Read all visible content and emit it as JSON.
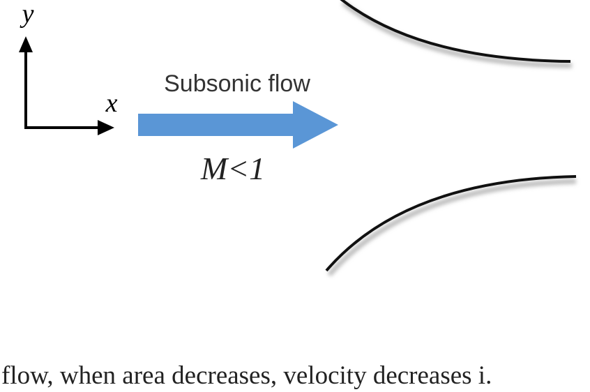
{
  "diagram": {
    "axis_y_label": "y",
    "axis_x_label": "x",
    "flow_label": "Subsonic flow",
    "mach_label": "M<1"
  },
  "caption": "flow, when area decreases, velocity decreases i."
}
